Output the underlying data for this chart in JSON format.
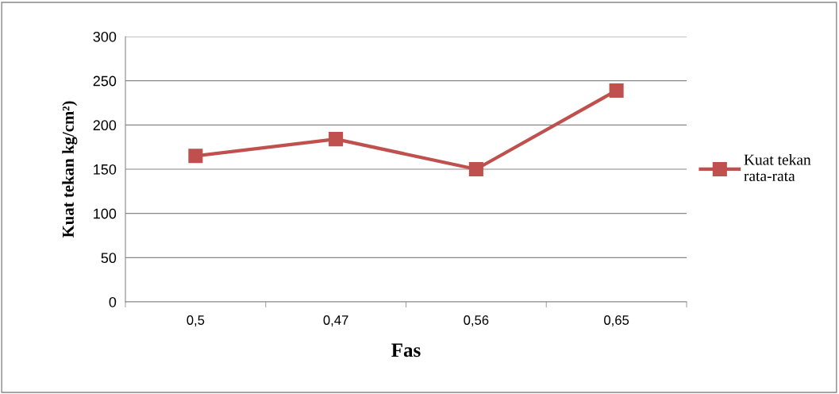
{
  "chart_data": {
    "type": "line",
    "xlabel": "Fas",
    "ylabel": "Kuat tekan kg/cm²)",
    "categories": [
      "0,5",
      "0,47",
      "0,56",
      "0,65"
    ],
    "series": [
      {
        "name": "Kuat tekan\nrata-rata",
        "color": "#c0504d",
        "values": [
          165,
          184,
          150,
          239
        ]
      }
    ],
    "ylim": [
      0,
      300
    ],
    "yticks": [
      0,
      50,
      100,
      150,
      200,
      250,
      300
    ],
    "grid": "y",
    "legend": "right",
    "marker": "square",
    "line_style": "solid"
  }
}
